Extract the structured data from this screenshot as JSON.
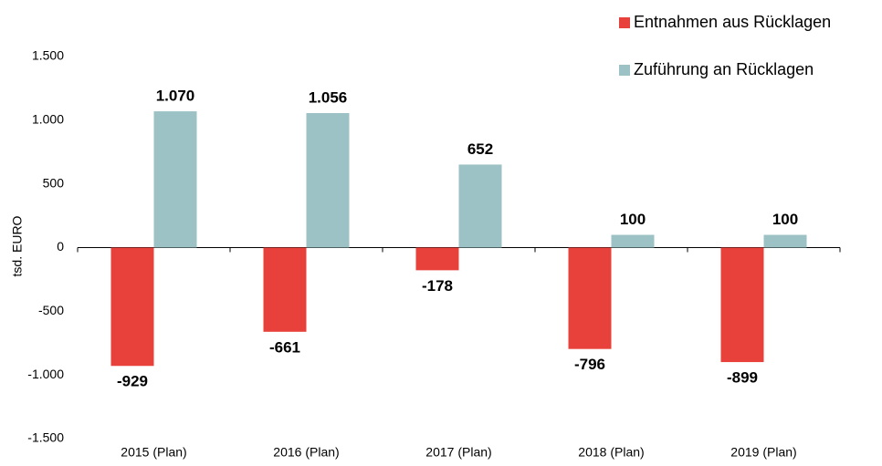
{
  "chart_data": {
    "type": "bar",
    "categories": [
      "2015 (Plan)",
      "2016 (Plan)",
      "2017 (Plan)",
      "2018 (Plan)",
      "2019 (Plan)"
    ],
    "series": [
      {
        "name": "Entnahmen aus Rücklagen",
        "color": "#e8403a",
        "values": [
          -929,
          -661,
          -178,
          -796,
          -899
        ]
      },
      {
        "name": "Zuführung an Rücklagen",
        "color": "#9cc2c5",
        "values": [
          1070,
          1056,
          652,
          100,
          100
        ],
        "value_labels": [
          "1.070",
          "1.056",
          "652",
          "100",
          "100"
        ]
      }
    ],
    "ylabel": "tsd. EURO",
    "ylim": [
      -1500,
      1500
    ],
    "yticks": [
      {
        "value": -1500,
        "label": "-1.500"
      },
      {
        "value": -1000,
        "label": "-1.000"
      },
      -500,
      0,
      500,
      {
        "value": 1000,
        "label": "1.000"
      },
      {
        "value": 1500,
        "label": "1.500"
      }
    ],
    "legend": "top-right"
  }
}
